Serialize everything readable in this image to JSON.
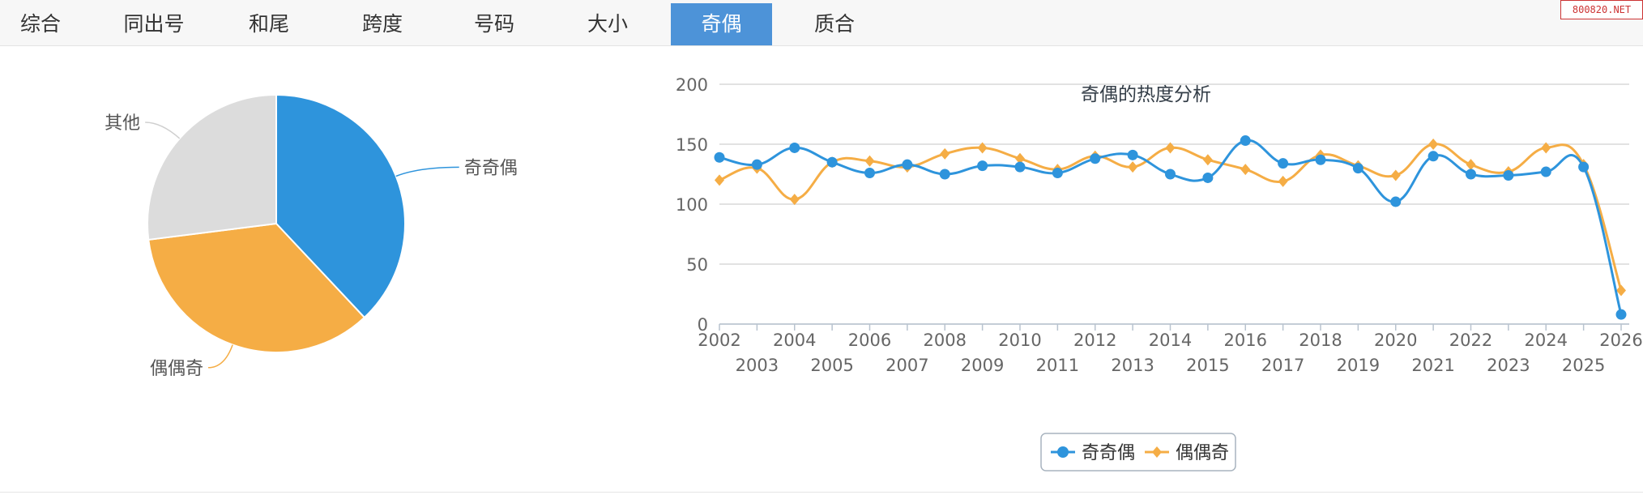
{
  "tabs": [
    {
      "label": "综合",
      "active": false
    },
    {
      "label": "同出号",
      "active": false
    },
    {
      "label": "和尾",
      "active": false
    },
    {
      "label": "跨度",
      "active": false
    },
    {
      "label": "号码",
      "active": false
    },
    {
      "label": "大小",
      "active": false
    },
    {
      "label": "奇偶",
      "active": true
    },
    {
      "label": "质合",
      "active": false
    }
  ],
  "watermark": "800820.NET",
  "chart_data": [
    {
      "type": "pie",
      "title": "",
      "slices": [
        {
          "name": "奇奇偶",
          "value": 38,
          "color": "#2e94dc"
        },
        {
          "name": "偶偶奇",
          "value": 35,
          "color": "#f5ad45"
        },
        {
          "name": "其他",
          "value": 27,
          "color": "#dcdcdc"
        }
      ]
    },
    {
      "type": "line",
      "title": "奇偶的热度分析",
      "xlabel": "",
      "ylabel": "",
      "ylim": [
        0,
        200
      ],
      "yticks": [
        0,
        50,
        100,
        150,
        200
      ],
      "grid": true,
      "legend": "bottom-center",
      "x": [
        "2002",
        "2003",
        "2004",
        "2005",
        "2006",
        "2007",
        "2008",
        "2009",
        "2010",
        "2011",
        "2012",
        "2013",
        "2014",
        "2015",
        "2016",
        "2017",
        "2018",
        "2019",
        "2020",
        "2021",
        "2022",
        "2023",
        "2024",
        "2025",
        "2026"
      ],
      "series": [
        {
          "name": "奇奇偶",
          "color": "#2e94dc",
          "marker": "circle",
          "values": [
            139,
            133,
            147,
            135,
            126,
            133,
            125,
            132,
            131,
            126,
            138,
            141,
            125,
            122,
            153,
            134,
            137,
            130,
            102,
            140,
            125,
            124,
            127,
            131,
            8
          ]
        },
        {
          "name": "偶偶奇",
          "color": "#f5ad45",
          "marker": "diamond",
          "values": [
            120,
            130,
            104,
            135,
            136,
            131,
            142,
            147,
            138,
            129,
            140,
            131,
            147,
            137,
            129,
            119,
            141,
            132,
            124,
            150,
            133,
            127,
            147,
            133,
            28
          ]
        }
      ]
    }
  ]
}
